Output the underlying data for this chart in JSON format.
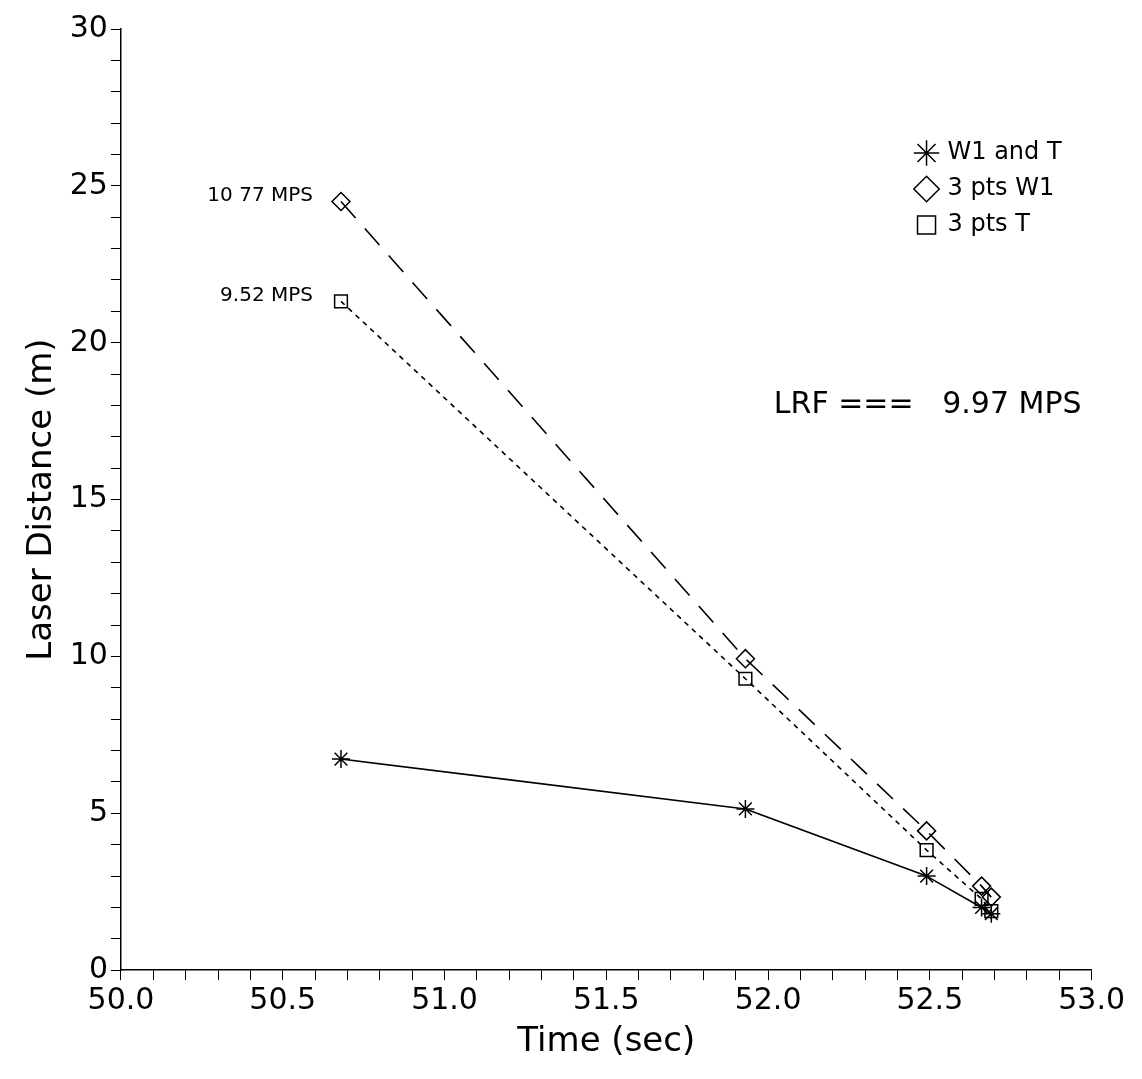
{
  "chart_data": {
    "type": "line",
    "xlabel": "Time (sec)",
    "ylabel": "Laser Distance (m)",
    "xlim": [
      50.0,
      53.0
    ],
    "xticks": [
      {
        "value": 50.0,
        "label": "50.0"
      },
      {
        "value": 50.1,
        "label": null
      },
      {
        "value": 50.2,
        "label": null
      },
      {
        "value": 50.3,
        "label": null
      },
      {
        "value": 50.4,
        "label": null
      },
      {
        "value": 50.5,
        "label": "50.5"
      },
      {
        "value": 50.6,
        "label": null
      },
      {
        "value": 50.7,
        "label": null
      },
      {
        "value": 50.8,
        "label": null
      },
      {
        "value": 50.9,
        "label": null
      },
      {
        "value": 51.0,
        "label": "51.0"
      },
      {
        "value": 51.1,
        "label": null
      },
      {
        "value": 51.2,
        "label": null
      },
      {
        "value": 51.3,
        "label": null
      },
      {
        "value": 51.4,
        "label": null
      },
      {
        "value": 51.5,
        "label": "51.5"
      },
      {
        "value": 51.6,
        "label": null
      },
      {
        "value": 51.7,
        "label": null
      },
      {
        "value": 51.8,
        "label": null
      },
      {
        "value": 51.9,
        "label": null
      },
      {
        "value": 52.0,
        "label": "52.0"
      },
      {
        "value": 52.1,
        "label": null
      },
      {
        "value": 52.2,
        "label": null
      },
      {
        "value": 52.3,
        "label": null
      },
      {
        "value": 52.4,
        "label": null
      },
      {
        "value": 52.5,
        "label": "52.5"
      },
      {
        "value": 52.6,
        "label": null
      },
      {
        "value": 52.7,
        "label": null
      },
      {
        "value": 52.8,
        "label": null
      },
      {
        "value": 52.9,
        "label": null
      },
      {
        "value": 53.0,
        "label": "53.0"
      }
    ],
    "ylim": [
      0,
      30
    ],
    "yticks": [
      0,
      {
        "value": 1,
        "label": null
      },
      {
        "value": 2,
        "label": null
      },
      {
        "value": 3,
        "label": null
      },
      {
        "value": 4,
        "label": null
      },
      5,
      {
        "value": 6,
        "label": null
      },
      {
        "value": 7,
        "label": null
      },
      {
        "value": 8,
        "label": null
      },
      {
        "value": 9,
        "label": null
      },
      10,
      {
        "value": 11,
        "label": null
      },
      {
        "value": 12,
        "label": null
      },
      {
        "value": 13,
        "label": null
      },
      {
        "value": 14,
        "label": null
      },
      15,
      {
        "value": 16,
        "label": null
      },
      {
        "value": 17,
        "label": null
      },
      {
        "value": 18,
        "label": null
      },
      {
        "value": 19,
        "label": null
      },
      20,
      {
        "value": 21,
        "label": null
      },
      {
        "value": 22,
        "label": null
      },
      {
        "value": 23,
        "label": null
      },
      {
        "value": 24,
        "label": null
      },
      25,
      {
        "value": 26,
        "label": null
      },
      {
        "value": 27,
        "label": null
      },
      {
        "value": 28,
        "label": null
      },
      {
        "value": 29,
        "label": null
      },
      30
    ],
    "grid": false,
    "legend": "top right",
    "x": [
      50.68,
      51.93,
      52.49,
      52.66,
      52.69
    ],
    "series": [
      {
        "name": "W1 and T",
        "color": "#000000",
        "marker": "cross",
        "line_style": "solid",
        "values": [
          6.73,
          5.14,
          3.0,
          2.0,
          1.8
        ]
      },
      {
        "name": "3 pts W1",
        "color": "#000000",
        "marker": "diamond",
        "line_style": "dashed",
        "values": [
          24.5,
          9.93,
          4.44,
          2.68,
          2.33
        ]
      },
      {
        "name": "3 pts T",
        "color": "#000000",
        "marker": "square",
        "line_style": "dotted",
        "values": [
          21.32,
          9.29,
          3.83,
          2.27,
          1.88
        ]
      }
    ],
    "annotations": [
      {
        "text": "10 77 MPS",
        "x": 50.68,
        "y": 24.5
      },
      {
        "text": "9.52 MPS",
        "x": 50.68,
        "y": 21.32
      },
      "LRF ===   9.97 MPS"
    ]
  }
}
